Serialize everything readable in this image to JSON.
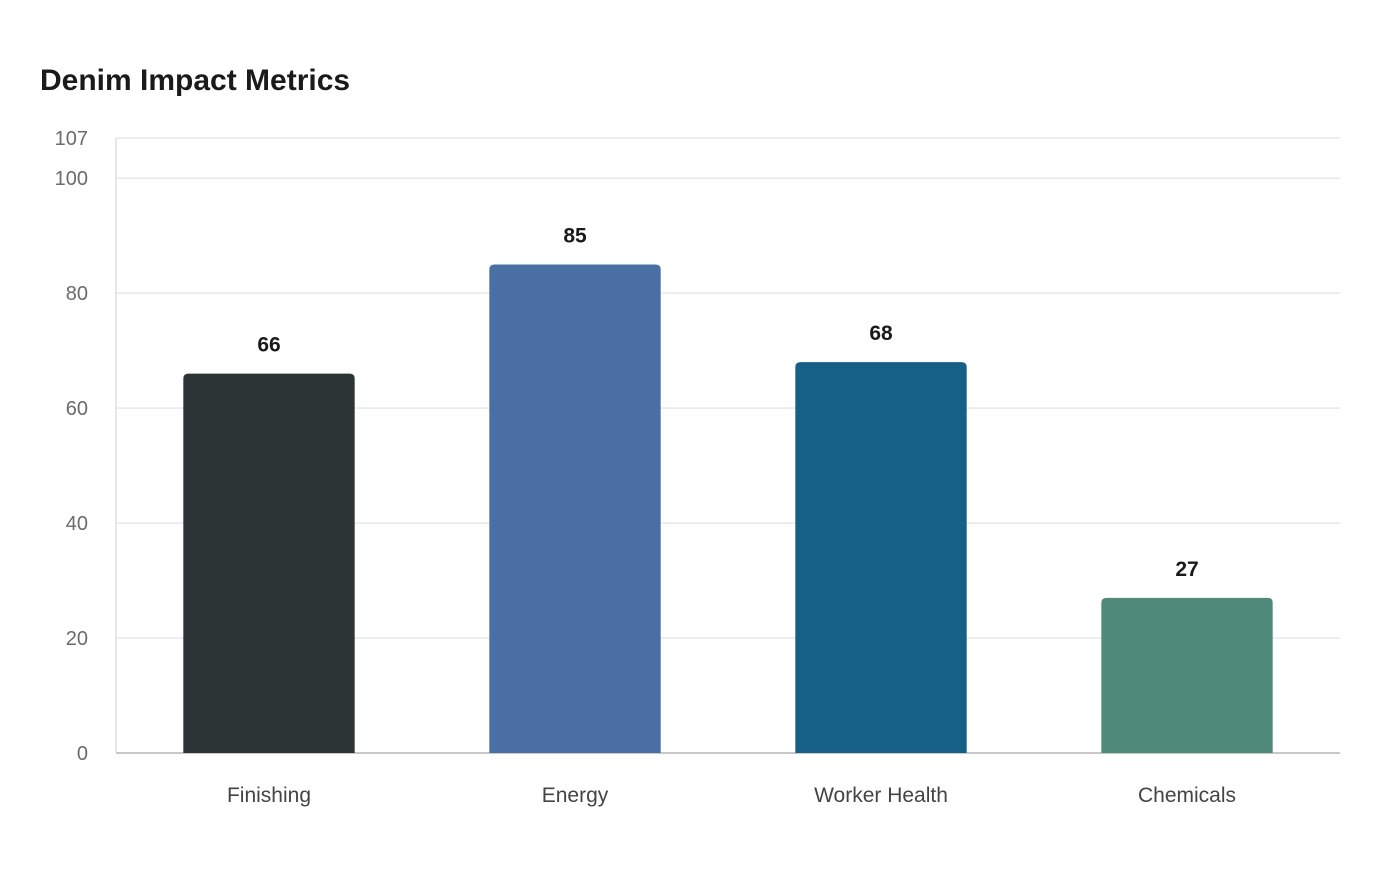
{
  "chart_data": {
    "type": "bar",
    "title": "Denim Impact Metrics",
    "xlabel": "",
    "ylabel": "",
    "categories": [
      "Finishing",
      "Energy",
      "Worker Health",
      "Chemicals"
    ],
    "values": [
      66,
      85,
      68,
      27
    ],
    "colors": [
      "#2d3436",
      "#4a6fa5",
      "#166088",
      "#4f8a7a"
    ],
    "ylim": [
      0,
      107
    ],
    "yticks": [
      0,
      20,
      40,
      60,
      80,
      100,
      107
    ],
    "grid": true,
    "legend": "none",
    "data_labels": true
  }
}
